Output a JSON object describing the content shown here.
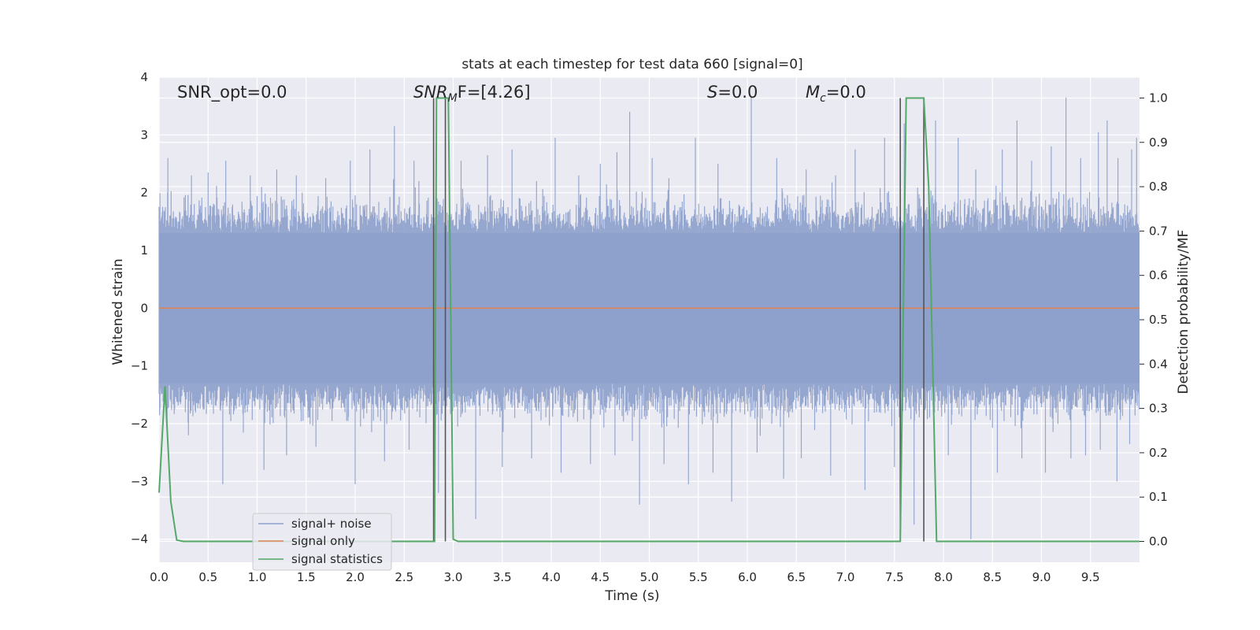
{
  "chart_data": {
    "type": "line",
    "title": "stats at each timestep for test data 660 [signal=0]",
    "xlabel": "Time (s)",
    "ylabel": "Whitened strain",
    "ylabel_right": "Detection probability/MF",
    "xlim": [
      0.0,
      10.0
    ],
    "ylim": [
      -4.4,
      4.0
    ],
    "ylim_right": [
      -0.047,
      1.047
    ],
    "xticks": [
      "0.0",
      "0.5",
      "1.0",
      "1.5",
      "2.0",
      "2.5",
      "3.0",
      "3.5",
      "4.0",
      "4.5",
      "5.0",
      "5.5",
      "6.0",
      "6.5",
      "7.0",
      "7.5",
      "8.0",
      "8.5",
      "9.0",
      "9.5"
    ],
    "yticks": [
      "4",
      "3",
      "2",
      "1",
      "0",
      "−1",
      "−2",
      "−3",
      "−4"
    ],
    "yticks_right": [
      "1.0",
      "0.9",
      "0.8",
      "0.7",
      "0.6",
      "0.5",
      "0.4",
      "0.3",
      "0.2",
      "0.1",
      "0.0"
    ],
    "grid": true,
    "annotations": {
      "snr_opt": "SNR_opt=0.0",
      "snr_mf_prefix": "SNR",
      "snr_mf_sub": "M",
      "snr_mf_suffix": "F=[4.26]",
      "s_prefix": "S",
      "s_suffix": "=0.0",
      "mc_prefix": "M",
      "mc_sub": "c",
      "mc_suffix": "=0.0"
    },
    "legend": {
      "placement": "lower-left",
      "entries": [
        "signal+ noise",
        "signal only",
        "signal statistics"
      ]
    },
    "colors": {
      "noise": "#8da0cb",
      "signal": "#dd8452",
      "stats": "#55a868",
      "vlines": "#555555",
      "plot_bg": "#eaeaf2",
      "grid": "#ffffff"
    },
    "series": [
      {
        "name": "signal+ noise",
        "style": "dense noise, amplitude roughly ±1.3 with peaks to about ±3.6"
      },
      {
        "name": "signal only",
        "x": [
          0.0,
          10.0
        ],
        "values": [
          0.0,
          0.0
        ]
      },
      {
        "name": "signal statistics",
        "axis": "right",
        "x": [
          0.0,
          0.06,
          0.12,
          0.18,
          0.25,
          0.4,
          2.81,
          2.83,
          2.95,
          3.0,
          3.05,
          3.1,
          7.56,
          7.62,
          7.8,
          7.85,
          7.93,
          10.0
        ],
        "values": [
          0.11,
          0.35,
          0.09,
          0.003,
          0.0,
          0.0,
          0.0,
          1.0,
          1.0,
          0.005,
          0.0,
          0.0,
          0.0,
          1.0,
          1.0,
          0.8,
          0.0,
          0.0
        ]
      }
    ],
    "vertical_markers": {
      "x": [
        2.8,
        2.92,
        7.56,
        7.8
      ],
      "range_right": [
        0.0,
        1.0
      ]
    },
    "spikes_up": [
      [
        0.09,
        2.6
      ],
      [
        0.33,
        2.3
      ],
      [
        0.5,
        2.35
      ],
      [
        0.68,
        2.55
      ],
      [
        0.93,
        2.3
      ],
      [
        1.2,
        2.4
      ],
      [
        1.4,
        2.3
      ],
      [
        1.7,
        2.25
      ],
      [
        1.95,
        2.55
      ],
      [
        2.15,
        2.75
      ],
      [
        2.4,
        3.15
      ],
      [
        2.6,
        2.55
      ],
      [
        2.65,
        2.2
      ],
      [
        3.08,
        2.55
      ],
      [
        3.35,
        2.65
      ],
      [
        3.6,
        2.75
      ],
      [
        3.85,
        2.2
      ],
      [
        4.04,
        2.95
      ],
      [
        4.28,
        2.3
      ],
      [
        4.5,
        2.5
      ],
      [
        4.67,
        2.7
      ],
      [
        4.8,
        3.4
      ],
      [
        5.03,
        2.6
      ],
      [
        5.2,
        2.25
      ],
      [
        5.47,
        2.95
      ],
      [
        5.7,
        2.5
      ],
      [
        6.04,
        3.65
      ],
      [
        6.3,
        2.6
      ],
      [
        6.6,
        2.4
      ],
      [
        6.9,
        2.3
      ],
      [
        7.1,
        2.75
      ],
      [
        7.4,
        2.95
      ],
      [
        7.6,
        3.2
      ],
      [
        7.92,
        3.25
      ],
      [
        8.15,
        2.95
      ],
      [
        8.33,
        2.4
      ],
      [
        8.6,
        2.75
      ],
      [
        8.75,
        3.25
      ],
      [
        8.9,
        2.55
      ],
      [
        9.1,
        2.8
      ],
      [
        9.25,
        3.65
      ],
      [
        9.4,
        2.6
      ],
      [
        9.58,
        3.05
      ],
      [
        9.67,
        3.25
      ],
      [
        9.78,
        2.6
      ],
      [
        9.92,
        2.75
      ],
      [
        9.97,
        2.95
      ]
    ],
    "spikes_down": [
      [
        0.3,
        -2.2
      ],
      [
        0.65,
        -3.05
      ],
      [
        1.07,
        -2.8
      ],
      [
        1.3,
        -2.55
      ],
      [
        1.6,
        -2.4
      ],
      [
        2.0,
        -3.05
      ],
      [
        2.3,
        -2.65
      ],
      [
        2.55,
        -2.45
      ],
      [
        2.85,
        -3.2
      ],
      [
        3.23,
        -3.65
      ],
      [
        3.5,
        -2.75
      ],
      [
        3.8,
        -2.6
      ],
      [
        4.1,
        -2.85
      ],
      [
        4.4,
        -2.7
      ],
      [
        4.65,
        -2.55
      ],
      [
        4.9,
        -3.4
      ],
      [
        5.15,
        -2.7
      ],
      [
        5.4,
        -3.05
      ],
      [
        5.65,
        -2.85
      ],
      [
        5.84,
        -3.35
      ],
      [
        6.1,
        -2.5
      ],
      [
        6.37,
        -2.95
      ],
      [
        6.55,
        -2.6
      ],
      [
        6.85,
        -2.9
      ],
      [
        7.2,
        -3.15
      ],
      [
        7.5,
        -2.75
      ],
      [
        7.7,
        -3.75
      ],
      [
        8.05,
        -2.55
      ],
      [
        8.28,
        -4.0
      ],
      [
        8.55,
        -2.85
      ],
      [
        8.8,
        -2.6
      ],
      [
        9.04,
        -2.85
      ],
      [
        9.3,
        -2.6
      ],
      [
        9.45,
        -2.55
      ],
      [
        9.6,
        -2.45
      ],
      [
        9.77,
        -3.0
      ],
      [
        9.9,
        -2.35
      ]
    ]
  }
}
